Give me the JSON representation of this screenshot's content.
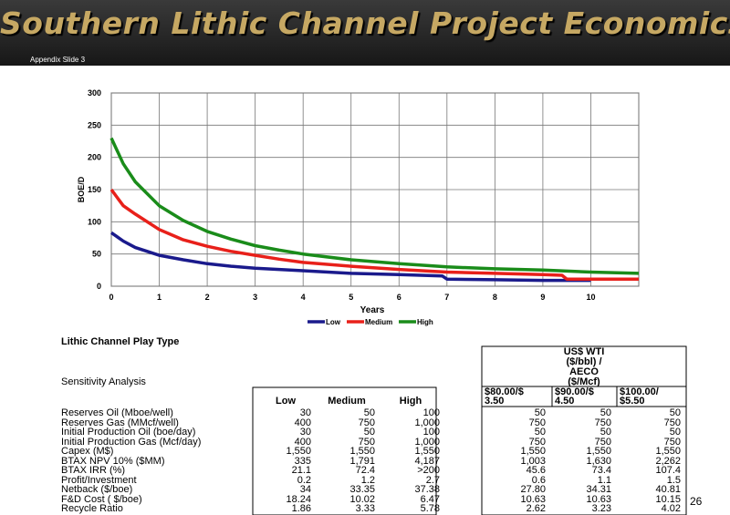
{
  "header": {
    "title": "Southern Lithic Channel Project Economics",
    "subtitle": "Appendix Slide 3"
  },
  "chart_data": {
    "type": "line",
    "title": "",
    "xlabel": "Years",
    "ylabel": "BOE/D",
    "xlim": [
      0,
      11
    ],
    "ylim": [
      0,
      300
    ],
    "x_ticks": [
      "0",
      "1",
      "2",
      "3",
      "4",
      "5",
      "6",
      "7",
      "8",
      "9",
      "10"
    ],
    "y_ticks": [
      "0",
      "50",
      "100",
      "150",
      "200",
      "250",
      "300"
    ],
    "grid": true,
    "legend_position": "bottom",
    "series": [
      {
        "name": "Low",
        "color": "#1a1a8c",
        "points": [
          [
            0,
            83
          ],
          [
            0.25,
            70
          ],
          [
            0.5,
            60
          ],
          [
            1,
            48
          ],
          [
            1.5,
            41
          ],
          [
            2,
            35
          ],
          [
            2.5,
            31
          ],
          [
            3,
            28
          ],
          [
            4,
            24
          ],
          [
            5,
            20
          ],
          [
            6,
            18
          ],
          [
            6.9,
            16
          ],
          [
            7,
            11
          ],
          [
            8,
            10
          ],
          [
            9,
            9
          ],
          [
            10,
            9
          ]
        ]
      },
      {
        "name": "Medium",
        "color": "#e8201a",
        "points": [
          [
            0,
            150
          ],
          [
            0.25,
            125
          ],
          [
            0.5,
            112
          ],
          [
            1,
            88
          ],
          [
            1.5,
            72
          ],
          [
            2,
            62
          ],
          [
            2.5,
            54
          ],
          [
            3,
            48
          ],
          [
            3.5,
            42
          ],
          [
            4,
            37
          ],
          [
            5,
            31
          ],
          [
            6,
            26
          ],
          [
            7,
            22
          ],
          [
            8,
            20
          ],
          [
            9,
            18
          ],
          [
            9.4,
            17
          ],
          [
            9.5,
            11
          ],
          [
            10,
            11
          ],
          [
            11,
            11
          ]
        ]
      },
      {
        "name": "High",
        "color": "#1a8c1a",
        "points": [
          [
            0,
            230
          ],
          [
            0.25,
            190
          ],
          [
            0.5,
            162
          ],
          [
            1,
            125
          ],
          [
            1.5,
            102
          ],
          [
            2,
            85
          ],
          [
            2.5,
            73
          ],
          [
            3,
            63
          ],
          [
            3.5,
            56
          ],
          [
            4,
            50
          ],
          [
            5,
            41
          ],
          [
            6,
            35
          ],
          [
            7,
            30
          ],
          [
            8,
            27
          ],
          [
            9,
            25
          ],
          [
            10,
            22
          ],
          [
            11,
            20
          ]
        ]
      }
    ]
  },
  "page_number": "26",
  "table": {
    "title": "Lithic Channel Play Type",
    "sensitivity_label": "Sensitivity Analysis",
    "wti_header": [
      "US$ WTI",
      "($/bbl) /",
      "AECO",
      "($/Mcf)"
    ],
    "case_headers": [
      "Low",
      "Medium",
      "High"
    ],
    "price_headers": [
      [
        "$80.00/$",
        "3.50"
      ],
      [
        "$90.00/$",
        "4.50"
      ],
      [
        "$100.00/",
        "$5.50"
      ]
    ],
    "rows": [
      {
        "label": "Reserves Oil (Mboe/well)",
        "cases": [
          "30",
          "50",
          "100"
        ],
        "prices": [
          "50",
          "50",
          "50"
        ]
      },
      {
        "label": "Reserves Gas (MMcf/well)",
        "cases": [
          "400",
          "750",
          "1,000"
        ],
        "prices": [
          "750",
          "750",
          "750"
        ]
      },
      {
        "label": "Initial Production Oil (boe/day)",
        "cases": [
          "30",
          "50",
          "100"
        ],
        "prices": [
          "50",
          "50",
          "50"
        ]
      },
      {
        "label": "Initial Production Gas (Mcf/day)",
        "cases": [
          "400",
          "750",
          "1,000"
        ],
        "prices": [
          "750",
          "750",
          "750"
        ]
      },
      {
        "label": "Capex (M$)",
        "cases": [
          "1,550",
          "1,550",
          "1,550"
        ],
        "prices": [
          "1,550",
          "1,550",
          "1,550"
        ]
      },
      {
        "label": "BTAX NPV 10% ($MM)",
        "cases": [
          "335",
          "1,791",
          "4,187"
        ],
        "prices": [
          "1,003",
          "1,630",
          "2,262"
        ]
      },
      {
        "label": "BTAX IRR (%)",
        "cases": [
          "21.1",
          "72.4",
          ">200"
        ],
        "prices": [
          "45.6",
          "73.4",
          "107.4"
        ]
      },
      {
        "label": "Profit/Investment",
        "cases": [
          "0.2",
          "1.2",
          "2.7"
        ],
        "prices": [
          "0.6",
          "1.1",
          "1.5"
        ]
      },
      {
        "label": "Netback ($/boe)",
        "cases": [
          "34",
          "33.35",
          "37.38"
        ],
        "prices": [
          "27.80",
          "34.31",
          "40.81"
        ]
      },
      {
        "label": "F&D Cost ( $/boe)",
        "cases": [
          "18.24",
          "10.02",
          "6.47"
        ],
        "prices": [
          "10.63",
          "10.63",
          "10.15"
        ]
      },
      {
        "label": "Recycle Ratio",
        "cases": [
          "1.86",
          "3.33",
          "5.78"
        ],
        "prices": [
          "2.62",
          "3.23",
          "4.02"
        ]
      }
    ]
  }
}
